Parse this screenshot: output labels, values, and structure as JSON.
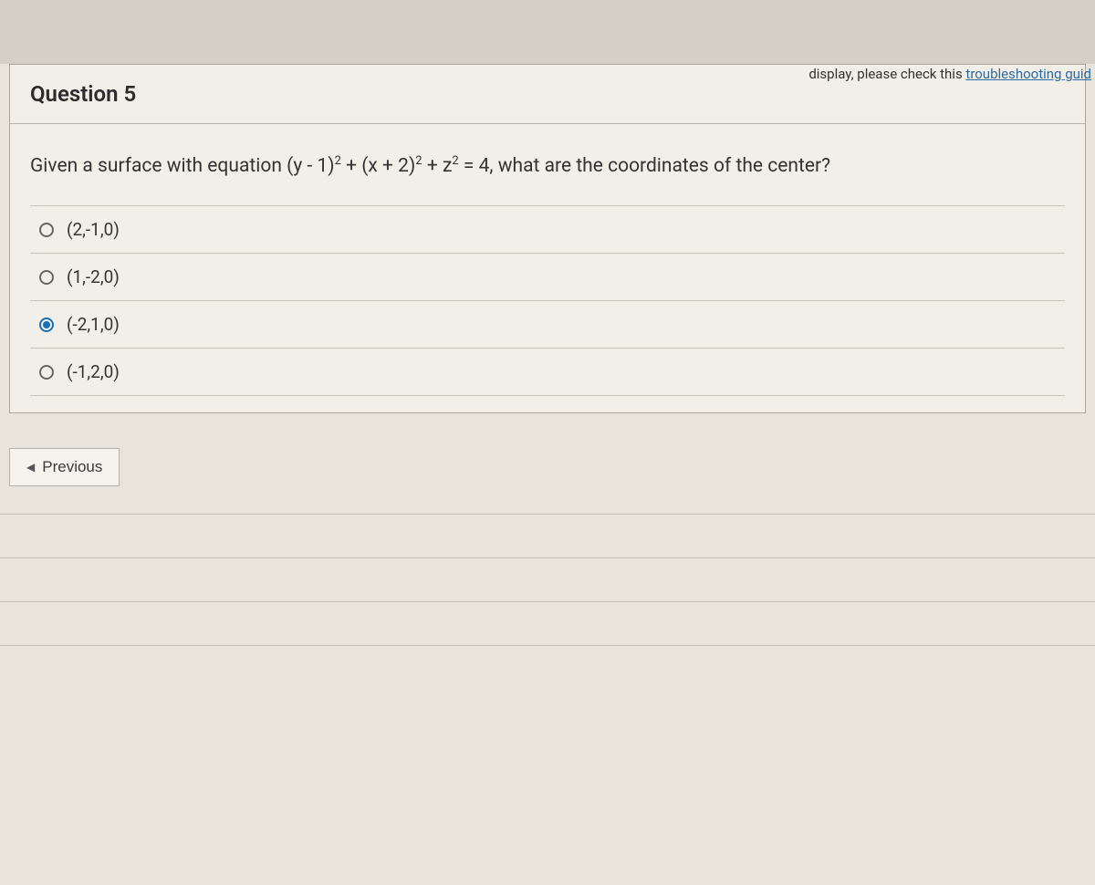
{
  "header": {
    "notice_prefix": "display, please check this ",
    "notice_link": "troubleshooting guid"
  },
  "question": {
    "title": "Question 5",
    "prompt_prefix": "Given a surface with equation (y - 1)",
    "prompt_mid1": " + (x + 2)",
    "prompt_mid2": " + z",
    "prompt_suffix": " = 4, what are the coordinates of the center?",
    "exp": "2"
  },
  "answers": [
    {
      "label": "(2,-1,0)",
      "selected": false
    },
    {
      "label": "(1,-2,0)",
      "selected": false
    },
    {
      "label": "(-2,1,0)",
      "selected": true
    },
    {
      "label": "(-1,2,0)",
      "selected": false
    }
  ],
  "nav": {
    "previous_label": "Previous"
  },
  "style": {
    "background_color": "#e8e4dc",
    "card_background": "#f2efe8",
    "border_color": "#aaa69a",
    "divider_color": "#c8c4b6",
    "text_color": "#333333",
    "accent_color": "#1a6fb5",
    "link_color": "#2d6aa3",
    "title_fontsize": 24,
    "body_fontsize": 21,
    "answer_fontsize": 19,
    "button_fontsize": 17
  }
}
